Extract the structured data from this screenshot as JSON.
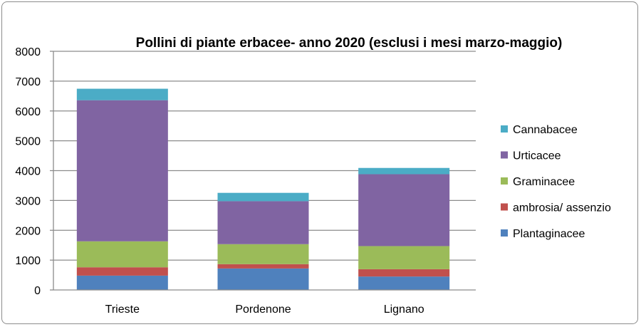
{
  "chart_data": {
    "type": "bar",
    "stacked": true,
    "title": "Pollini di piante erbacee- anno 2020 (esclusi i mesi marzo-maggio)",
    "xlabel": "",
    "ylabel": "",
    "ylim": [
      0,
      8000
    ],
    "yticks": [
      0,
      1000,
      2000,
      3000,
      4000,
      5000,
      6000,
      7000,
      8000
    ],
    "grid": true,
    "legend_position": "right",
    "categories": [
      "Trieste",
      "Pordenone",
      "Lignano"
    ],
    "series": [
      {
        "name": "Plantaginacee",
        "color": "#4f81bd",
        "values": [
          480,
          720,
          450
        ]
      },
      {
        "name": "ambrosia/ assenzio",
        "color": "#c0504d",
        "values": [
          280,
          145,
          245
        ]
      },
      {
        "name": "Graminacee",
        "color": "#9bbb59",
        "values": [
          870,
          670,
          775
        ]
      },
      {
        "name": "Urticacee",
        "color": "#8064a2",
        "values": [
          4730,
          1440,
          2410
        ]
      },
      {
        "name": "Cannabacee",
        "color": "#4bacc6",
        "values": [
          385,
          280,
          210
        ]
      }
    ]
  }
}
